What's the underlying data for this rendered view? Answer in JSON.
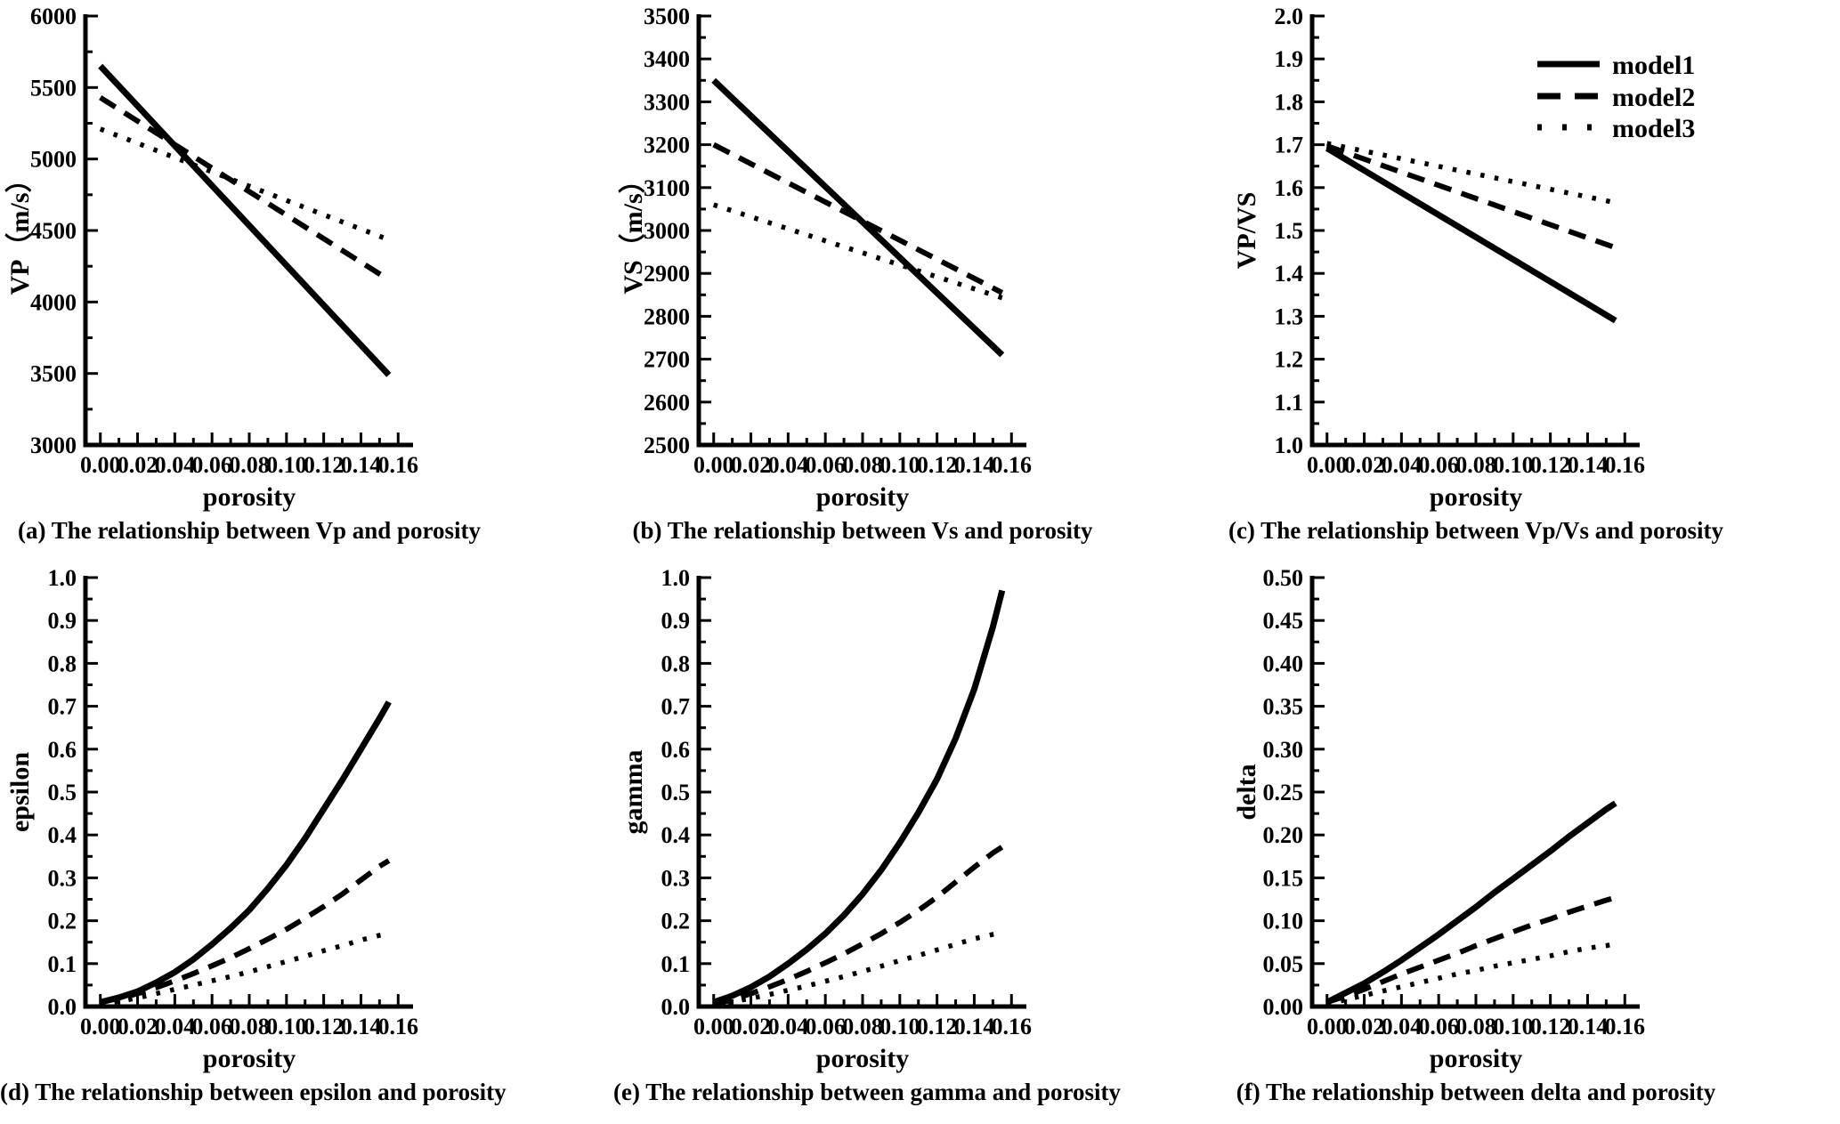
{
  "figure": {
    "background": "#ffffff",
    "ink_color": "#000000",
    "description_visible_text_only": true
  },
  "x_axis": {
    "label": "porosity",
    "min": -0.008,
    "max": 0.168,
    "tick_values": [
      0.0,
      0.02,
      0.04,
      0.06,
      0.08,
      0.1,
      0.12,
      0.14,
      0.16
    ],
    "tick_labels": [
      "0.00",
      "0.02",
      "0.04",
      "0.06",
      "0.08",
      "0.10",
      "0.12",
      "0.14",
      "0.16"
    ]
  },
  "legend": {
    "location": "top-right of subplot (c)",
    "items": [
      {
        "label": "model1",
        "line_style": "solid"
      },
      {
        "label": "model2",
        "line_style": "dashed"
      },
      {
        "label": "model3",
        "line_style": "dotted"
      }
    ]
  },
  "chart_data": [
    {
      "id": "a",
      "type": "line",
      "caption": "(a) The relationship between Vp and porosity",
      "xlabel": "porosity",
      "ylabel": "VP（m/s）",
      "ylim": [
        3000,
        6000
      ],
      "y_tick_values": [
        3000,
        3500,
        4000,
        4500,
        5000,
        5500,
        6000
      ],
      "y_tick_labels": [
        "3000",
        "3500",
        "4000",
        "4500",
        "5000",
        "5500",
        "6000"
      ],
      "series": [
        {
          "name": "model1",
          "style": "solid",
          "x": [
            0,
            0.155
          ],
          "y": [
            5650,
            3490
          ]
        },
        {
          "name": "model2",
          "style": "dashed",
          "x": [
            0,
            0.155
          ],
          "y": [
            5430,
            4155
          ]
        },
        {
          "name": "model3",
          "style": "dotted",
          "x": [
            0,
            0.155
          ],
          "y": [
            5210,
            4435
          ]
        }
      ]
    },
    {
      "id": "b",
      "type": "line",
      "caption": "(b) The relationship between Vs and porosity",
      "xlabel": "porosity",
      "ylabel": "VS（m/s）",
      "ylim": [
        2500,
        3500
      ],
      "y_tick_values": [
        2500,
        2600,
        2700,
        2800,
        2900,
        3000,
        3100,
        3200,
        3300,
        3400,
        3500
      ],
      "y_tick_labels": [
        "2500",
        "2600",
        "2700",
        "2800",
        "2900",
        "3000",
        "3100",
        "3200",
        "3300",
        "3400",
        "3500"
      ],
      "series": [
        {
          "name": "model1",
          "style": "solid",
          "x": [
            0,
            0.155
          ],
          "y": [
            3350,
            2710
          ]
        },
        {
          "name": "model2",
          "style": "dashed",
          "x": [
            0,
            0.155
          ],
          "y": [
            3200,
            2855
          ]
        },
        {
          "name": "model3",
          "style": "dotted",
          "x": [
            0,
            0.155
          ],
          "y": [
            3060,
            2843
          ]
        }
      ]
    },
    {
      "id": "c",
      "type": "line",
      "caption": "(c) The relationship between Vp/Vs and porosity",
      "xlabel": "porosity",
      "ylabel": "VP/VS",
      "legend": true,
      "ylim": [
        1.0,
        2.0
      ],
      "y_tick_values": [
        1.0,
        1.1,
        1.2,
        1.3,
        1.4,
        1.5,
        1.6,
        1.7,
        1.8,
        1.9,
        2.0
      ],
      "y_tick_labels": [
        "1.0",
        "1.1",
        "1.2",
        "1.3",
        "1.4",
        "1.5",
        "1.6",
        "1.7",
        "1.8",
        "1.9",
        "2.0"
      ],
      "series": [
        {
          "name": "model1",
          "style": "solid",
          "x": [
            0,
            0.155
          ],
          "y": [
            1.692,
            1.29
          ]
        },
        {
          "name": "model2",
          "style": "dashed",
          "x": [
            0,
            0.155
          ],
          "y": [
            1.697,
            1.46
          ]
        },
        {
          "name": "model3",
          "style": "dotted",
          "x": [
            0,
            0.155
          ],
          "y": [
            1.703,
            1.565
          ]
        }
      ]
    },
    {
      "id": "d",
      "type": "line",
      "caption": "(d) The relationship between epsilon and porosity",
      "xlabel": "porosity",
      "ylabel": "epsilon",
      "ylim": [
        0.0,
        1.0
      ],
      "y_tick_values": [
        0.0,
        0.1,
        0.2,
        0.3,
        0.4,
        0.5,
        0.6,
        0.7,
        0.8,
        0.9,
        1.0
      ],
      "y_tick_labels": [
        "0.0",
        "0.1",
        "0.2",
        "0.3",
        "0.4",
        "0.5",
        "0.6",
        "0.7",
        "0.8",
        "0.9",
        "1.0"
      ],
      "series": [
        {
          "name": "model1",
          "style": "solid",
          "x": [
            0,
            0.01,
            0.02,
            0.03,
            0.04,
            0.05,
            0.06,
            0.07,
            0.08,
            0.09,
            0.1,
            0.11,
            0.12,
            0.13,
            0.14,
            0.15,
            0.155
          ],
          "y": [
            0.01,
            0.021,
            0.035,
            0.056,
            0.08,
            0.11,
            0.145,
            0.183,
            0.225,
            0.275,
            0.33,
            0.392,
            0.46,
            0.528,
            0.6,
            0.672,
            0.71
          ]
        },
        {
          "name": "model2",
          "style": "dashed",
          "x": [
            0,
            0.01,
            0.02,
            0.03,
            0.04,
            0.05,
            0.06,
            0.07,
            0.08,
            0.09,
            0.1,
            0.11,
            0.12,
            0.13,
            0.14,
            0.15,
            0.155
          ],
          "y": [
            0.01,
            0.019,
            0.03,
            0.044,
            0.06,
            0.077,
            0.095,
            0.114,
            0.135,
            0.157,
            0.18,
            0.206,
            0.233,
            0.262,
            0.295,
            0.327,
            0.34
          ]
        },
        {
          "name": "model3",
          "style": "dotted",
          "x": [
            0,
            0.01,
            0.02,
            0.03,
            0.04,
            0.05,
            0.06,
            0.07,
            0.08,
            0.09,
            0.1,
            0.11,
            0.12,
            0.13,
            0.14,
            0.15,
            0.155
          ],
          "y": [
            0.005,
            0.012,
            0.02,
            0.03,
            0.04,
            0.05,
            0.06,
            0.07,
            0.081,
            0.093,
            0.105,
            0.117,
            0.13,
            0.142,
            0.155,
            0.166,
            0.17
          ]
        }
      ]
    },
    {
      "id": "e",
      "type": "line",
      "caption": "(e) The relationship between gamma and porosity",
      "xlabel": "porosity",
      "ylabel": "gamma",
      "ylim": [
        0.0,
        1.0
      ],
      "y_tick_values": [
        0.0,
        0.1,
        0.2,
        0.3,
        0.4,
        0.5,
        0.6,
        0.7,
        0.8,
        0.9,
        1.0
      ],
      "y_tick_labels": [
        "0.0",
        "0.1",
        "0.2",
        "0.3",
        "0.4",
        "0.5",
        "0.6",
        "0.7",
        "0.8",
        "0.9",
        "1.0"
      ],
      "series": [
        {
          "name": "model1",
          "style": "solid",
          "x": [
            0,
            0.01,
            0.02,
            0.03,
            0.04,
            0.05,
            0.06,
            0.07,
            0.08,
            0.09,
            0.1,
            0.11,
            0.12,
            0.13,
            0.14,
            0.15,
            0.155
          ],
          "y": [
            0.01,
            0.025,
            0.045,
            0.07,
            0.1,
            0.133,
            0.17,
            0.213,
            0.262,
            0.318,
            0.382,
            0.452,
            0.53,
            0.625,
            0.74,
            0.885,
            0.97
          ]
        },
        {
          "name": "model2",
          "style": "dashed",
          "x": [
            0,
            0.01,
            0.02,
            0.03,
            0.04,
            0.05,
            0.06,
            0.07,
            0.08,
            0.09,
            0.1,
            0.11,
            0.12,
            0.13,
            0.14,
            0.15,
            0.155
          ],
          "y": [
            0.005,
            0.016,
            0.03,
            0.046,
            0.063,
            0.082,
            0.102,
            0.123,
            0.146,
            0.17,
            0.196,
            0.224,
            0.255,
            0.29,
            0.325,
            0.358,
            0.372
          ]
        },
        {
          "name": "model3",
          "style": "dotted",
          "x": [
            0,
            0.01,
            0.02,
            0.03,
            0.04,
            0.05,
            0.06,
            0.07,
            0.08,
            0.09,
            0.1,
            0.11,
            0.12,
            0.13,
            0.14,
            0.15,
            0.155
          ],
          "y": [
            0.005,
            0.011,
            0.019,
            0.028,
            0.038,
            0.048,
            0.059,
            0.07,
            0.082,
            0.094,
            0.107,
            0.119,
            0.132,
            0.145,
            0.158,
            0.168,
            0.172
          ]
        }
      ]
    },
    {
      "id": "f",
      "type": "line",
      "caption": "(f) The relationship between delta and porosity",
      "xlabel": "porosity",
      "ylabel": "delta",
      "ylim": [
        0.0,
        0.5
      ],
      "y_tick_values": [
        0.0,
        0.05,
        0.1,
        0.15,
        0.2,
        0.25,
        0.3,
        0.35,
        0.4,
        0.45,
        0.5
      ],
      "y_tick_labels": [
        "0.00",
        "0.05",
        "0.10",
        "0.15",
        "0.20",
        "0.25",
        "0.30",
        "0.35",
        "0.40",
        "0.45",
        "0.50"
      ],
      "series": [
        {
          "name": "model1",
          "style": "solid",
          "x": [
            0,
            0.01,
            0.02,
            0.03,
            0.04,
            0.05,
            0.06,
            0.07,
            0.08,
            0.09,
            0.1,
            0.11,
            0.12,
            0.13,
            0.14,
            0.15,
            0.155
          ],
          "y": [
            0.005,
            0.016,
            0.027,
            0.04,
            0.054,
            0.069,
            0.084,
            0.1,
            0.116,
            0.133,
            0.149,
            0.165,
            0.181,
            0.198,
            0.214,
            0.23,
            0.237
          ]
        },
        {
          "name": "model2",
          "style": "dashed",
          "x": [
            0,
            0.01,
            0.02,
            0.03,
            0.04,
            0.05,
            0.06,
            0.07,
            0.08,
            0.09,
            0.1,
            0.11,
            0.12,
            0.13,
            0.14,
            0.15,
            0.155
          ],
          "y": [
            0.005,
            0.012,
            0.02,
            0.029,
            0.038,
            0.046,
            0.054,
            0.062,
            0.071,
            0.079,
            0.087,
            0.095,
            0.102,
            0.11,
            0.117,
            0.124,
            0.127
          ]
        },
        {
          "name": "model3",
          "style": "dotted",
          "x": [
            0,
            0.01,
            0.02,
            0.03,
            0.04,
            0.05,
            0.06,
            0.07,
            0.08,
            0.09,
            0.1,
            0.11,
            0.12,
            0.13,
            0.14,
            0.15,
            0.155
          ],
          "y": [
            0.003,
            0.008,
            0.013,
            0.018,
            0.023,
            0.028,
            0.033,
            0.038,
            0.042,
            0.047,
            0.051,
            0.055,
            0.059,
            0.064,
            0.068,
            0.071,
            0.073
          ]
        }
      ]
    }
  ]
}
